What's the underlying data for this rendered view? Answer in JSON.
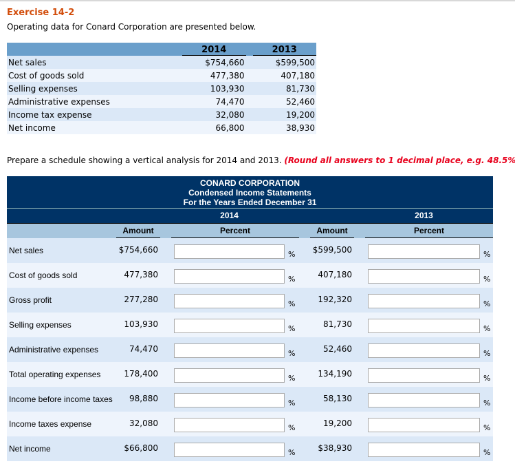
{
  "title": "Exercise 14-2",
  "intro": "Operating data for Conard Corporation are presented below.",
  "data_table": {
    "years": [
      "2014",
      "2013"
    ],
    "rows": [
      {
        "label": "Net sales",
        "v2014": "$754,660",
        "v2013": "$599,500"
      },
      {
        "label": "Cost of goods sold",
        "v2014": "477,380",
        "v2013": "407,180"
      },
      {
        "label": "Selling expenses",
        "v2014": "103,930",
        "v2013": "81,730"
      },
      {
        "label": "Administrative expenses",
        "v2014": "74,470",
        "v2013": "52,460"
      },
      {
        "label": "Income tax expense",
        "v2014": "32,080",
        "v2013": "19,200"
      },
      {
        "label": "Net income",
        "v2014": "66,800",
        "v2013": "38,930"
      }
    ]
  },
  "prompt": "Prepare a schedule showing a vertical analysis for 2014 and 2013. ",
  "prompt_note": "(Round all answers to 1 decimal place, e.g. 48.5%.",
  "statement": {
    "company": "CONARD CORPORATION",
    "name": "Condensed Income Statements",
    "period": "For the Years Ended December 31",
    "years": [
      "2014",
      "2013"
    ],
    "amount_label": "Amount",
    "percent_label": "Percent",
    "percent_sign": "%",
    "rows": [
      {
        "label": "Net sales",
        "a2014": "$754,660",
        "a2013": "$599,500"
      },
      {
        "label": "Cost of goods sold",
        "a2014": "477,380",
        "a2013": "407,180"
      },
      {
        "label": "Gross profit",
        "a2014": "277,280",
        "a2013": "192,320"
      },
      {
        "label": "Selling expenses",
        "a2014": "103,930",
        "a2013": "81,730"
      },
      {
        "label": "Administrative expenses",
        "a2014": "74,470",
        "a2013": "52,460"
      },
      {
        "label": "Total operating expenses",
        "a2014": "178,400",
        "a2013": "134,190"
      },
      {
        "label": "Income before income taxes",
        "a2014": "98,880",
        "a2013": "58,130"
      },
      {
        "label": "Income taxes expense",
        "a2014": "32,080",
        "a2013": "19,200"
      },
      {
        "label": "Net income",
        "a2014": "$66,800",
        "a2013": "$38,930"
      }
    ]
  }
}
